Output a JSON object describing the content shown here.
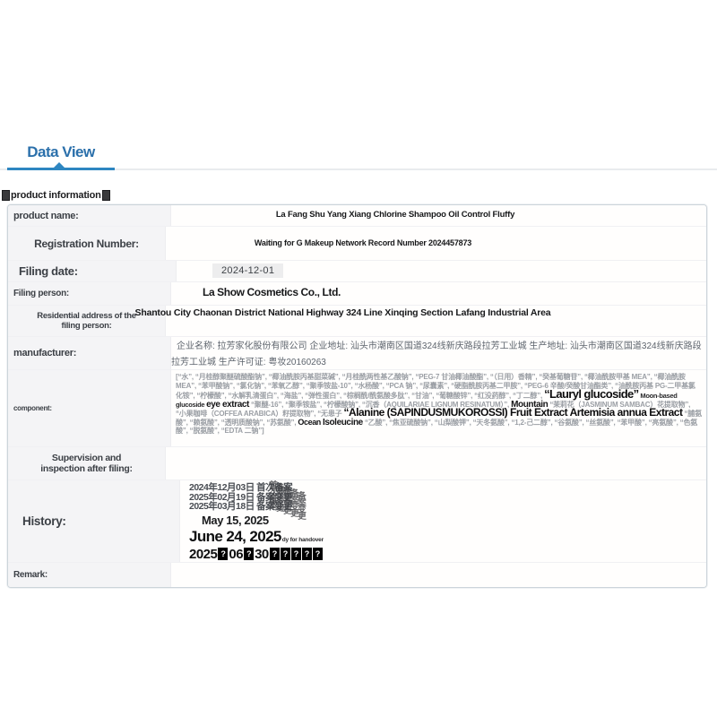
{
  "tab": {
    "label": "Data View"
  },
  "section": {
    "title": "product information"
  },
  "table": {
    "rows": [
      {
        "label": "product name:",
        "value": "La Fang Shu Yang Xiang Chlorine Shampoo Oil Control Fluffy"
      },
      {
        "label": "Registration Number:",
        "value": "Waiting for G Makeup Network Record Number 2024457873"
      },
      {
        "label": "Filing date:",
        "value": "2024-12-01"
      },
      {
        "label": "Filing person:",
        "value": "La Show Cosmetics Co., Ltd."
      },
      {
        "label": "Residential address of the filing person:",
        "value": "Shantou City Chaonan District National Highway 324 Line Xinqing Section Lafang Industrial Area"
      },
      {
        "label": "manufacturer:",
        "value": "企业名称: 拉芳家化股份有限公司 企业地址: 汕头市潮南区国道324线新庆路段拉芳工业城 生产地址: 汕头市潮南区国道324线新庆路段拉芳工业城 生产许可证: 粤妆20160263"
      },
      {
        "label": "component:",
        "value": ""
      },
      {
        "label": "Supervision and inspection after filing:",
        "value": ""
      },
      {
        "label": "History:",
        "value": ""
      },
      {
        "label": "Remark:",
        "value": ""
      }
    ]
  },
  "component": {
    "segments": [
      {
        "t": "[“水”, “月桂醇聚醚硫酸酯钠”, “椰油酰胺丙基甜菜碱”, “月桂酰两性基乙酸钠”, “PEG-7 甘油椰油酸酯”, “（日用）香精”, “癸基葡糖苷”, “椰油酰胺甲基 MEA”, “椰油酰胺 MEA”, “苯甲酸钠”, “氯化钠”, “苯氧乙醇”, “聚季铵盐-10”, “水杨酸”, “PCA 钠”, “尿囊素”, “硬脂酰胺丙基二甲胺”, “PEG-6 辛酸/癸酸甘油酯类”, “油酰胺丙基 PG-二甲基氯化铵”, “柠檬酸”, “水解乳清蛋白”, “海盐”, “弹性蛋白”, “棕榈酰/酰氨酸多肽”, “甘油”, “葡糖酸锌”, “红没药醇”, “丁二醇”, ",
        "style": "plain"
      },
      {
        "t": "“Lauryl glucoside”",
        "style": "b13"
      },
      {
        "t": " Moon-based glucoside ",
        "style": "b8"
      },
      {
        "t": "eye extract",
        "style": "b10"
      },
      {
        "t": " “聚醚-16”, “聚季铵盐”, “柠檬酸钠”, “沉香（AQUILARIAE LIGNUM RESINATUM）”, ",
        "style": "plain"
      },
      {
        "t": "Mountain",
        "style": "b10"
      },
      {
        "t": " “茉莉花（JASMINUM SAMBAC）花提取物”, “小果咖啡（COFFEA ARABICA）籽提取物”, “无患子 ",
        "style": "plain"
      },
      {
        "t": "“Alanine (SAPINDUSMUKOROSSI) Fruit Extract Artemisia annua Extract",
        "style": "b12"
      },
      {
        "t": " “脯氨酸”, “赖氨酸”, “透明质酸钠”, “苏氨酸”, ",
        "style": "plain"
      },
      {
        "t": "Ocean",
        "style": "b9"
      },
      {
        "t": " ",
        "style": "plain"
      },
      {
        "t": "Isoleucine",
        "style": "b10"
      },
      {
        "t": " “乙酸”, “焦亚硫酸钠”, “山梨酸钾”, “天冬氨酸”, “1,2-己二醇”, “谷氨酸”, “丝氨酸”, “苯甲酸”, “亮氨酸”, “色氨酸”, “脱氨酸”, “EDTA 二钠”]",
        "style": "plain"
      }
    ]
  },
  "history": {
    "entries": [
      {
        "text": "2024年12月03日 首次备案"
      },
      {
        "text": "2025年02月19日 备案变更"
      },
      {
        "text": "2025年03月18日 备案变更"
      }
    ],
    "stamps": [
      "首次备案",
      "备案变更",
      "备案变更",
      "备案变更",
      "备案变更"
    ],
    "date_may": "May 15, 2025",
    "date_june": "June 24, 2025",
    "handover_note": "dy for handover",
    "tofu_line": [
      {
        "text": "2025"
      },
      {
        "tofu": 1
      },
      {
        "text": "06"
      },
      {
        "tofu": 1
      },
      {
        "text": "30"
      },
      {
        "tofu": 5
      }
    ]
  }
}
